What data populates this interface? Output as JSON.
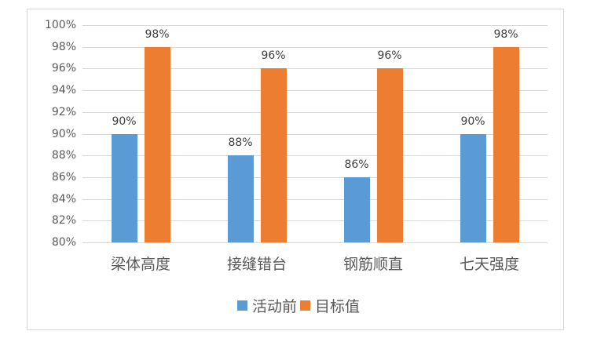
{
  "chart_data": {
    "type": "bar",
    "title": "",
    "xlabel": "",
    "ylabel": "",
    "categories": [
      "梁体高度",
      "接缝错台",
      "钢筋顺直",
      "七天强度"
    ],
    "series": [
      {
        "name": "活动前",
        "values": [
          90,
          88,
          86,
          90
        ],
        "labels": [
          "90%",
          "88%",
          "86%",
          "90%"
        ],
        "color": "#5b9bd5"
      },
      {
        "name": "目标值",
        "values": [
          98,
          96,
          96,
          98
        ],
        "labels": [
          "98%",
          "96%",
          "96%",
          "98%"
        ],
        "color": "#ed7d31"
      }
    ],
    "ylim": [
      80,
      100
    ],
    "yticks": [
      "100%",
      "98%",
      "96%",
      "94%",
      "92%",
      "90%",
      "88%",
      "86%",
      "84%",
      "82%",
      "80%"
    ],
    "grid": true,
    "legend_position": "bottom"
  },
  "legend": {
    "items": [
      {
        "label": "活动前",
        "color": "#5b9bd5"
      },
      {
        "label": "目标值",
        "color": "#ed7d31"
      }
    ]
  }
}
